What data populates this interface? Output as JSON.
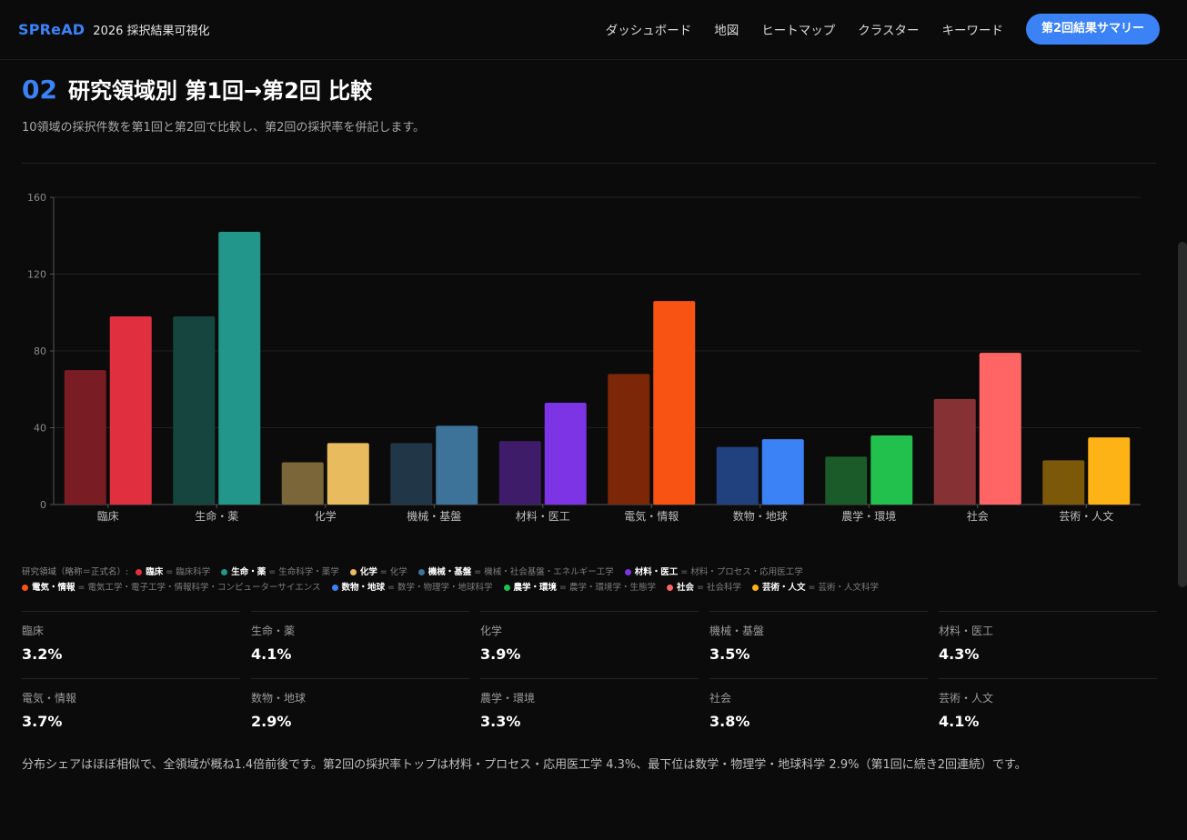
{
  "header": {
    "brand": "SPReAD",
    "subtitle": "2026 採択結果可視化",
    "nav": [
      "ダッシュボード",
      "地図",
      "ヒートマップ",
      "クラスター",
      "キーワード"
    ],
    "cta": "第2回結果サマリー"
  },
  "section": {
    "number": "02",
    "title": "研究領域別 第1回→第2回 比較",
    "description": "10領域の採択件数を第1回と第2回で比較し、第2回の採択率を併記します。"
  },
  "chart_data": {
    "type": "bar",
    "categories": [
      "臨床",
      "生命・薬",
      "化学",
      "機械・基盤",
      "材料・医工",
      "電気・情報",
      "数物・地球",
      "農学・環境",
      "社会",
      "芸術・人文"
    ],
    "series": [
      {
        "values": [
          70,
          98,
          22,
          32,
          33,
          68,
          30,
          25,
          55,
          23
        ]
      },
      {
        "values": [
          98,
          142,
          32,
          41,
          53,
          106,
          34,
          36,
          79,
          35
        ]
      }
    ],
    "colors_round1": [
      "#7a1c24",
      "#16453f",
      "#7a6638",
      "#213646",
      "#3f1c6a",
      "#7c2808",
      "#20417e",
      "#1b5a29",
      "#863235",
      "#7c5809"
    ],
    "colors_round2": [
      "#e03040",
      "#22968a",
      "#e8bc5e",
      "#3d7399",
      "#7c34e4",
      "#f95314",
      "#3b82f6",
      "#22c04c",
      "#fe6564",
      "#fdb215"
    ],
    "ylim": [
      0,
      160
    ],
    "yticks": [
      0,
      40,
      80,
      120,
      160
    ],
    "grid": true
  },
  "legend": {
    "title": "研究領域（略称＝正式名）:",
    "items": [
      {
        "abbr": "臨床",
        "full": "= 臨床科学",
        "color": "#e03040"
      },
      {
        "abbr": "生命・薬",
        "full": "= 生命科学・薬学",
        "color": "#22968a"
      },
      {
        "abbr": "化学",
        "full": "= 化学",
        "color": "#e8bc5e"
      },
      {
        "abbr": "機械・基盤",
        "full": "= 機械・社会基盤・エネルギー工学",
        "color": "#3d7399"
      },
      {
        "abbr": "材料・医工",
        "full": "= 材料・プロセス・応用医工学",
        "color": "#7c34e4"
      },
      {
        "abbr": "電気・情報",
        "full": "= 電気工学・電子工学・情報科学・コンピューターサイエンス",
        "color": "#f95314"
      },
      {
        "abbr": "数物・地球",
        "full": "= 数学・物理学・地球科学",
        "color": "#3b82f6"
      },
      {
        "abbr": "農学・環境",
        "full": "= 農学・環境学・生態学",
        "color": "#22c04c"
      },
      {
        "abbr": "社会",
        "full": "= 社会科学",
        "color": "#fe6564"
      },
      {
        "abbr": "芸術・人文",
        "full": "= 芸術・人文科学",
        "color": "#fdb215"
      }
    ]
  },
  "stats": [
    {
      "label": "臨床",
      "value": "3.2%"
    },
    {
      "label": "生命・薬",
      "value": "4.1%"
    },
    {
      "label": "化学",
      "value": "3.9%"
    },
    {
      "label": "機械・基盤",
      "value": "3.5%"
    },
    {
      "label": "材料・医工",
      "value": "4.3%"
    },
    {
      "label": "電気・情報",
      "value": "3.7%"
    },
    {
      "label": "数物・地球",
      "value": "2.9%"
    },
    {
      "label": "農学・環境",
      "value": "3.3%"
    },
    {
      "label": "社会",
      "value": "3.8%"
    },
    {
      "label": "芸術・人文",
      "value": "4.1%"
    }
  ],
  "summary": "分布シェアはほぼ相似で、全領域が概ね1.4倍前後です。第2回の採択率トップは材料・プロセス・応用医工学 4.3%、最下位は数学・物理学・地球科学 2.9%（第1回に続き2回連続）です。"
}
